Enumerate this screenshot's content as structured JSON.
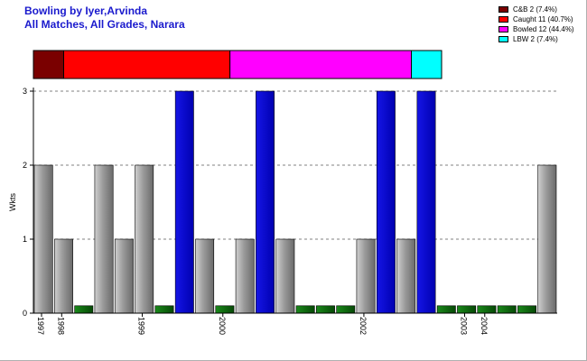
{
  "title_line1": "Bowling by Iyer,Arvinda",
  "title_line2": "All Matches, All Grades, Narara",
  "colors": {
    "title": "#1a1acd",
    "grey_bar": "#9a9a9a",
    "green_bar": "#0b6a0b",
    "blue_bar": "#0000d0",
    "grid": "#808080"
  },
  "legend": [
    {
      "label": "C&B 2 (7.4%)",
      "color": "#7a0000"
    },
    {
      "label": "Caught 11 (40.7%)",
      "color": "#ff0000"
    },
    {
      "label": "Bowled 12 (44.4%)",
      "color": "#ff00ff"
    },
    {
      "label": "LBW 2 (7.4%)",
      "color": "#00ffff"
    }
  ],
  "chart_data": [
    {
      "type": "bar",
      "ylabel": "Wkts",
      "xlabel": "",
      "ylim": [
        0,
        3
      ],
      "yticks": [
        0,
        1,
        2,
        3
      ],
      "grid": true,
      "values": [
        2,
        1,
        0.1,
        2,
        1,
        2,
        0.1,
        3,
        1,
        0.1,
        1,
        3,
        1,
        0.1,
        0.1,
        0.1,
        1,
        3,
        1,
        3,
        0.1,
        0.1,
        0.1,
        0.1,
        0.1,
        2
      ],
      "bar_styles": [
        "grey",
        "grey",
        "green",
        "grey",
        "grey",
        "grey",
        "green",
        "blue",
        "grey",
        "green",
        "grey",
        "blue",
        "grey",
        "green",
        "green",
        "green",
        "grey",
        "blue",
        "grey",
        "blue",
        "green",
        "green",
        "green",
        "green",
        "green",
        "grey"
      ],
      "x_tick_labels": [
        {
          "bar": 0,
          "label": "1997"
        },
        {
          "bar": 1,
          "label": "1998"
        },
        {
          "bar": 5,
          "label": "1999"
        },
        {
          "bar": 9,
          "label": "2000"
        },
        {
          "bar": 16,
          "label": "2002"
        },
        {
          "bar": 21,
          "label": "2003"
        },
        {
          "bar": 22,
          "label": "2004"
        }
      ]
    },
    {
      "type": "bar",
      "stacked": true,
      "orientation": "horizontal",
      "categories": [
        "C&B",
        "Caught",
        "Bowled",
        "LBW"
      ],
      "values": [
        2,
        11,
        12,
        2
      ],
      "colors": [
        "#7a0000",
        "#ff0000",
        "#ff00ff",
        "#00ffff"
      ]
    }
  ]
}
